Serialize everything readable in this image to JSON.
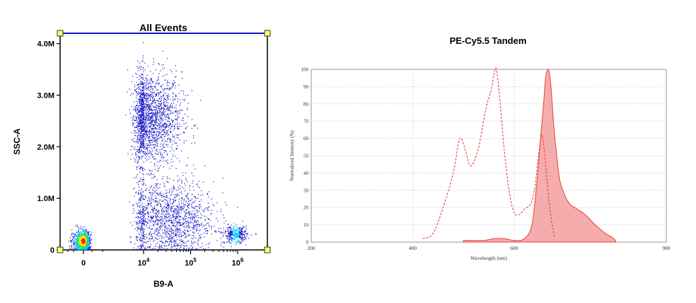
{
  "chart_data": [
    {
      "type": "scatter",
      "title": "All Events",
      "xlabel": "B9-A",
      "ylabel": "SSC-A",
      "x_scale": "biexponential",
      "x_tick_labels": [
        "0",
        "10^4",
        "10^5",
        "10^6"
      ],
      "y_tick_labels": [
        "0",
        "1.0M",
        "2.0M",
        "3.0M",
        "4.0M"
      ],
      "ylim": [
        0,
        4200000
      ],
      "grid": false,
      "density_colors": [
        "#1515c8",
        "#00c8ff",
        "#00e060",
        "#ffe000",
        "#ff2000"
      ],
      "populations": [
        {
          "name": "",
          "x_center_log": 4.1,
          "x_spread_log": 0.35,
          "y_center": 2550000,
          "y_spread": 450000,
          "fraction": 0.38
        },
        {
          "name": "",
          "x_center_log": 4.5,
          "x_spread_log": 0.5,
          "y_center": 600000,
          "y_spread": 380000,
          "fraction": 0.3
        },
        {
          "name": "",
          "x_center_log": 0.0,
          "x_spread_log": 0.2,
          "y_center": 180000,
          "y_spread": 120000,
          "fraction": 0.2
        },
        {
          "name": "",
          "x_center_log": 5.95,
          "x_spread_log": 0.12,
          "y_center": 300000,
          "y_spread": 80000,
          "fraction": 0.07
        }
      ],
      "gate_handles": [
        "top-left",
        "top-right",
        "bottom-left",
        "bottom-right"
      ]
    },
    {
      "type": "area",
      "title": "PE-Cy5.5 Tandem",
      "xlabel": "Wavelength (nm)",
      "ylabel": "Normalized Intensity (%)",
      "xlim": [
        200,
        900
      ],
      "ylim": [
        0,
        100
      ],
      "x_ticks": [
        200,
        400,
        600,
        900
      ],
      "y_ticks": [
        0,
        10,
        20,
        30,
        40,
        50,
        60,
        70,
        80,
        90,
        100
      ],
      "grid": true,
      "series": [
        {
          "name": "",
          "style": "dashed",
          "color": "#e8413c",
          "x": [
            420,
            440,
            460,
            480,
            490,
            496,
            505,
            515,
            530,
            545,
            555,
            560,
            565,
            572,
            580,
            590,
            600,
            610,
            620,
            632,
            640,
            648,
            655,
            662,
            670,
            680
          ],
          "y": [
            2,
            5,
            20,
            40,
            57,
            60,
            52,
            44,
            55,
            78,
            88,
            97,
            100,
            82,
            55,
            30,
            17,
            16,
            19,
            22,
            30,
            50,
            62,
            45,
            20,
            2
          ]
        },
        {
          "name": "",
          "style": "filled",
          "color": "#e8413c",
          "fill": "#f4a3a3",
          "x": [
            500,
            540,
            560,
            580,
            600,
            620,
            635,
            645,
            652,
            658,
            662,
            666,
            670,
            674,
            678,
            684,
            690,
            700,
            710,
            720,
            730,
            740,
            760,
            780,
            792,
            800
          ],
          "y": [
            1,
            1,
            2,
            2,
            1,
            2,
            10,
            35,
            60,
            80,
            95,
            100,
            97,
            85,
            68,
            50,
            36,
            27,
            22,
            20,
            18,
            16,
            10,
            5,
            3,
            1
          ]
        }
      ]
    }
  ]
}
